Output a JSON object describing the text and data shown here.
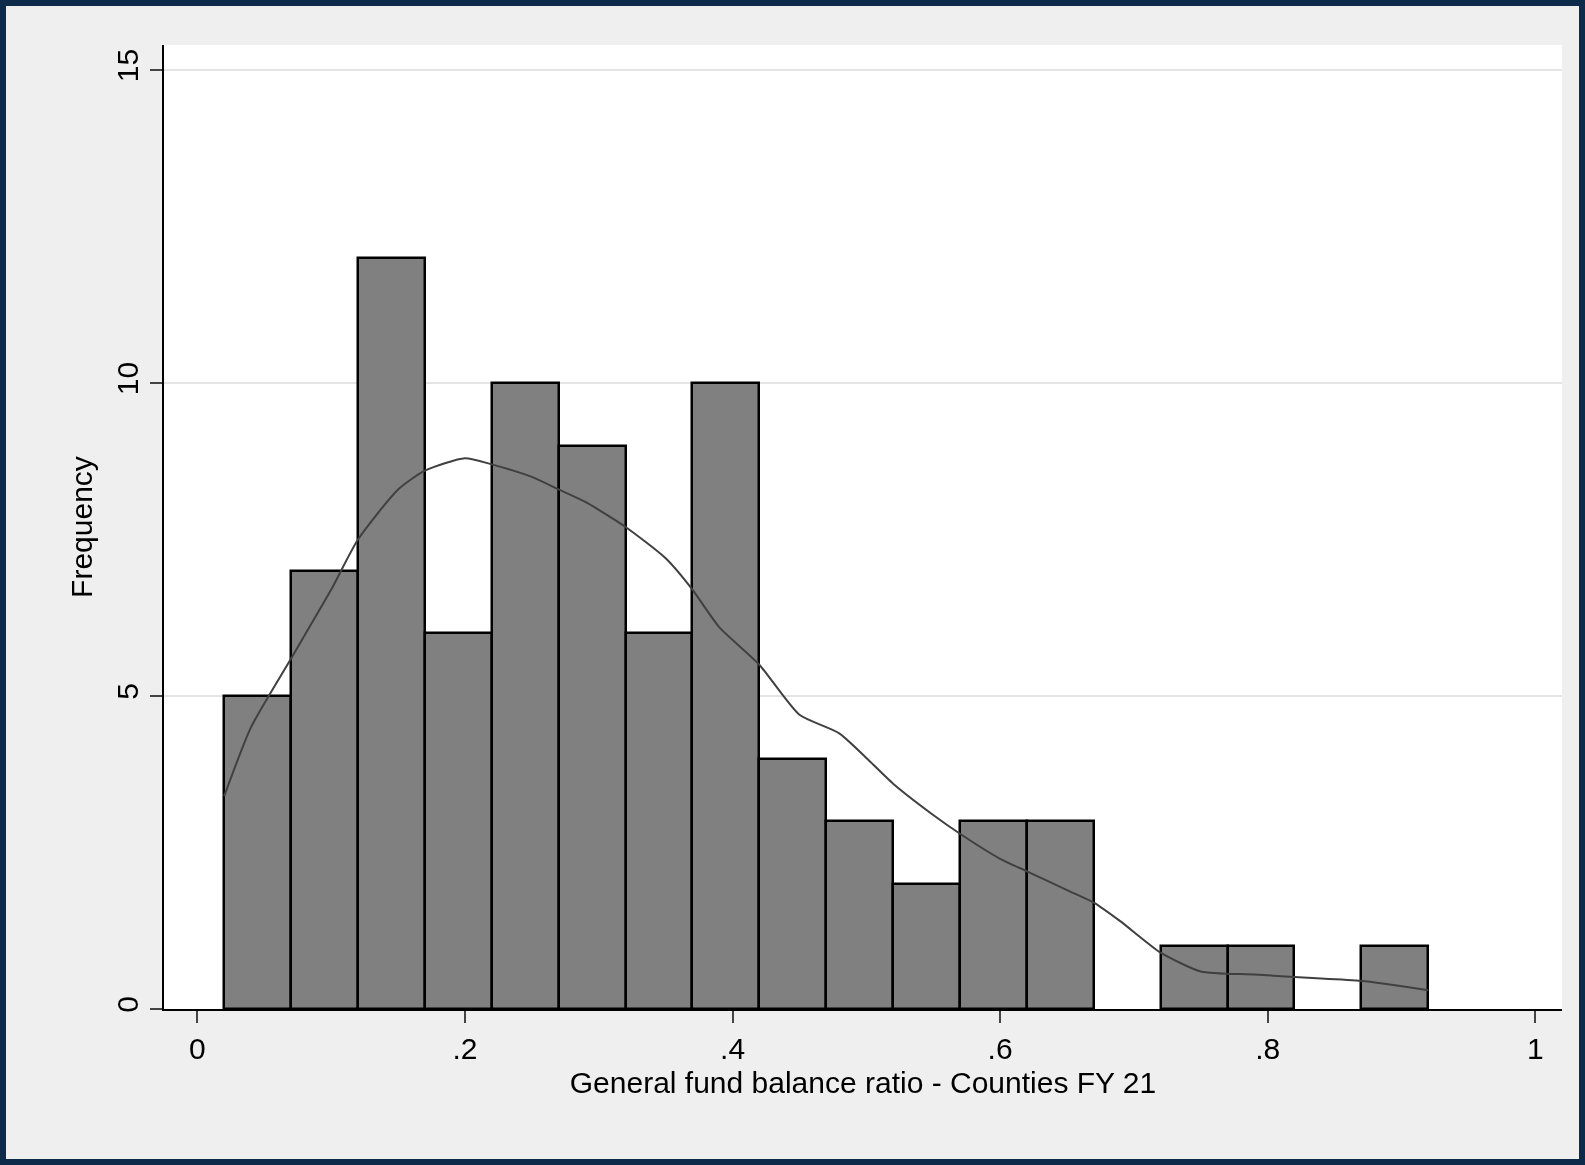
{
  "chart_data": {
    "type": "histogram",
    "xlabel": "General fund balance ratio - Counties FY 21",
    "ylabel": "Frequency",
    "series": [
      {
        "color": "#808080",
        "bins": [
          0.02,
          0.07,
          0.12,
          0.17,
          0.22,
          0.27,
          0.32,
          0.37,
          0.42,
          0.47,
          0.52,
          0.57,
          0.62,
          0.67,
          0.72,
          0.77,
          0.82,
          0.87,
          0.92
        ],
        "values": [
          5,
          7,
          12,
          6,
          10,
          9,
          6,
          10,
          4,
          3,
          2,
          3,
          3,
          0,
          1,
          1,
          0,
          1
        ]
      },
      {
        "type": "line",
        "color": "#404040",
        "x": [
          0.02,
          0.04,
          0.07,
          0.1,
          0.12,
          0.15,
          0.17,
          0.2,
          0.22,
          0.25,
          0.27,
          0.29,
          0.32,
          0.35,
          0.37,
          0.39,
          0.42,
          0.45,
          0.48,
          0.52,
          0.55,
          0.57,
          0.6,
          0.62,
          0.65,
          0.67,
          0.69,
          0.72,
          0.75,
          0.79,
          0.83,
          0.87,
          0.92
        ],
        "values": [
          3.4,
          4.5,
          5.6,
          6.7,
          7.5,
          8.3,
          8.6,
          8.8,
          8.7,
          8.5,
          8.3,
          8.1,
          7.7,
          7.2,
          6.7,
          6.1,
          5.5,
          4.7,
          4.4,
          3.6,
          3.1,
          2.8,
          2.4,
          2.2,
          1.9,
          1.7,
          1.4,
          0.9,
          0.6,
          0.55,
          0.5,
          0.45,
          0.3
        ]
      }
    ],
    "xlim": [
      -0.025,
      1.02
    ],
    "ylim": [
      0,
      15.4
    ],
    "xticks": [
      0,
      {
        "value": 0.2,
        "label": ".2"
      },
      {
        "value": 0.4,
        "label": ".4"
      },
      {
        "value": 0.6,
        "label": ".6"
      },
      {
        "value": 0.8,
        "label": ".8"
      },
      1
    ],
    "yticks": [
      0,
      5,
      10,
      15
    ],
    "grid": "y"
  }
}
